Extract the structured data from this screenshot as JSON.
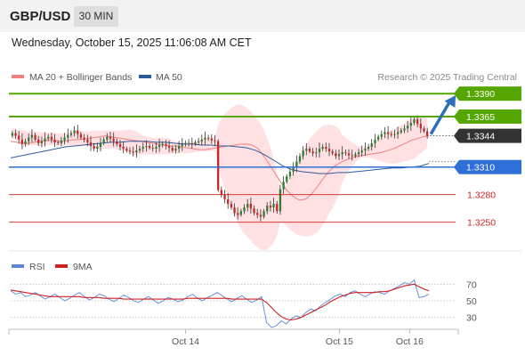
{
  "header": {
    "symbol": "GBP/USD",
    "timeframe": "30 MIN",
    "datetime": "Wednesday, October 15, 2025 11:06:08 AM CET"
  },
  "legend": {
    "ma20": {
      "label": "MA 20 + Bollinger Bands",
      "color": "#f08080"
    },
    "ma50": {
      "label": "MA 50",
      "color": "#2f5b9e"
    },
    "copyright": "Research © 2025 Trading Central"
  },
  "colors": {
    "resistance": "#55a600",
    "current_price": "#333333",
    "pivot": "#2f6fd8",
    "support": "#cc2222",
    "bollinger_fill": "#ffd9dc",
    "arrow": "#2f6fb8",
    "bull_candle": "#2e7d32",
    "bear_candle": "#c62828",
    "rsi_line": "#5a86d6",
    "rsi_ma_line": "#cc2222"
  },
  "chart_data": [
    {
      "type": "candlestick",
      "title": "GBP/USD 30 MIN",
      "ylim": [
        1.324,
        1.3395
      ],
      "x_ticks": [
        "Oct 14",
        "Oct 15",
        "Oct 16"
      ],
      "levels": [
        {
          "label": "1.3390",
          "value": 1.339,
          "kind": "resistance"
        },
        {
          "label": "1.3365",
          "value": 1.3365,
          "kind": "resistance"
        },
        {
          "label": "1.3344",
          "value": 1.3344,
          "kind": "current_price"
        },
        {
          "label": "1.3310",
          "value": 1.331,
          "kind": "pivot"
        },
        {
          "label": "1.3280",
          "value": 1.328,
          "kind": "support"
        },
        {
          "label": "1.3250",
          "value": 1.325,
          "kind": "support"
        }
      ],
      "close_series": [
        1.3347,
        1.3344,
        1.334,
        1.3335,
        1.3338,
        1.3342,
        1.3345,
        1.334,
        1.3336,
        1.3338,
        1.3341,
        1.3343,
        1.334,
        1.3337,
        1.3336,
        1.3339,
        1.3342,
        1.3345,
        1.3347,
        1.335,
        1.3346,
        1.3342,
        1.334,
        1.3337,
        1.3333,
        1.333,
        1.3332,
        1.3336,
        1.334,
        1.3343,
        1.3341,
        1.3338,
        1.3335,
        1.3332,
        1.333,
        1.3328,
        1.3327,
        1.3326,
        1.3328,
        1.333,
        1.3332,
        1.3333,
        1.3331,
        1.333,
        1.3332,
        1.3334,
        1.3335,
        1.3333,
        1.3331,
        1.3328,
        1.333,
        1.3333,
        1.3335,
        1.3336,
        1.3336,
        1.3335,
        1.3337,
        1.3338,
        1.334,
        1.3342,
        1.3341,
        1.3339,
        1.3338,
        1.3285,
        1.328,
        1.3275,
        1.327,
        1.3266,
        1.326,
        1.3258,
        1.3262,
        1.3266,
        1.327,
        1.3265,
        1.326,
        1.3258,
        1.3256,
        1.3262,
        1.3268,
        1.3266,
        1.327,
        1.3262,
        1.3286,
        1.3294,
        1.33,
        1.3305,
        1.331,
        1.3316,
        1.3322,
        1.3328,
        1.333,
        1.3327,
        1.3325,
        1.3326,
        1.333,
        1.3332,
        1.333,
        1.3327,
        1.3325,
        1.3322,
        1.3324,
        1.3326,
        1.3325,
        1.3323,
        1.3322,
        1.3324,
        1.3326,
        1.3328,
        1.333,
        1.3332,
        1.3336,
        1.334,
        1.3343,
        1.3346,
        1.3348,
        1.3346,
        1.3345,
        1.3346,
        1.3348,
        1.335,
        1.3352,
        1.3355,
        1.3358,
        1.3362,
        1.3357,
        1.3352,
        1.3349,
        1.3344
      ],
      "ma20": [
        1.3338,
        1.3337,
        1.3336,
        1.3336,
        1.3337,
        1.3338,
        1.3339,
        1.3339,
        1.3338,
        1.3338,
        1.3339,
        1.334,
        1.334,
        1.3341,
        1.3342,
        1.3343,
        1.3344,
        1.3343,
        1.3342,
        1.3341,
        1.334,
        1.3339,
        1.3338,
        1.3337,
        1.3336,
        1.3335,
        1.3334,
        1.3333,
        1.3333,
        1.3332,
        1.3331,
        1.333,
        1.3329,
        1.3329,
        1.333,
        1.3331,
        1.3332,
        1.3333,
        1.3334,
        1.3335,
        1.3335,
        1.3334,
        1.333,
        1.3322,
        1.3312,
        1.3302,
        1.3292,
        1.3284,
        1.3278,
        1.3274,
        1.3275,
        1.328,
        1.3288,
        1.3297,
        1.3305,
        1.3311,
        1.3315,
        1.3318,
        1.332,
        1.3322,
        1.3323,
        1.3324,
        1.3325,
        1.3326,
        1.3328,
        1.333,
        1.3333,
        1.3336,
        1.3339,
        1.3341,
        1.3343,
        1.3344
      ],
      "ma50": [
        1.332,
        1.3322,
        1.3324,
        1.3326,
        1.3328,
        1.333,
        1.3332,
        1.3333,
        1.3334,
        1.3335,
        1.3336,
        1.3337,
        1.3337,
        1.3338,
        1.3338,
        1.3338,
        1.3337,
        1.3337,
        1.3336,
        1.3335,
        1.3335,
        1.3334,
        1.3334,
        1.3333,
        1.3333,
        1.3332,
        1.3331,
        1.3328,
        1.3323,
        1.3317,
        1.3311,
        1.3307,
        1.3305,
        1.3304,
        1.3303,
        1.3303,
        1.3304,
        1.3304,
        1.3305,
        1.3306,
        1.3307,
        1.3308,
        1.3309,
        1.3309,
        1.331,
        1.3311,
        1.3314
      ]
    },
    {
      "type": "line",
      "title": "RSI",
      "ylim": [
        20,
        80
      ],
      "y_ticks": [
        "70",
        "50",
        "30"
      ],
      "series": [
        {
          "name": "RSI",
          "values": [
            62,
            58,
            60,
            55,
            57,
            60,
            56,
            52,
            55,
            58,
            54,
            50,
            53,
            57,
            60,
            55,
            51,
            54,
            58,
            56,
            52,
            49,
            53,
            57,
            54,
            50,
            48,
            52,
            55,
            51,
            47,
            50,
            54,
            52,
            49,
            51,
            55,
            58,
            53,
            50,
            54,
            57,
            60,
            56,
            52,
            49,
            53,
            56,
            52,
            48,
            51,
            55,
            24,
            18,
            20,
            26,
            22,
            28,
            32,
            30,
            36,
            40,
            38,
            44,
            48,
            52,
            56,
            58,
            55,
            60,
            62,
            58,
            55,
            58,
            61,
            60,
            58,
            62,
            65,
            68,
            72,
            70,
            75,
            54,
            55,
            58
          ]
        },
        {
          "name": "9MA",
          "values": [
            63,
            62,
            61,
            60,
            59,
            58,
            57,
            56,
            55,
            55,
            55,
            55,
            55,
            55,
            55,
            54,
            54,
            54,
            54,
            53,
            53,
            53,
            53,
            52,
            52,
            52,
            52,
            52,
            52,
            52,
            52,
            52,
            52,
            52,
            52,
            52,
            53,
            53,
            53,
            53,
            53,
            53,
            53,
            53,
            53,
            52,
            52,
            52,
            52,
            52,
            52,
            52,
            48,
            42,
            36,
            31,
            28,
            27,
            28,
            30,
            33,
            36,
            39,
            42,
            45,
            49,
            52,
            55,
            57,
            59,
            60,
            60,
            60,
            60,
            60,
            61,
            61,
            62,
            64,
            66,
            68,
            69,
            70,
            67,
            64,
            62
          ]
        }
      ]
    }
  ]
}
